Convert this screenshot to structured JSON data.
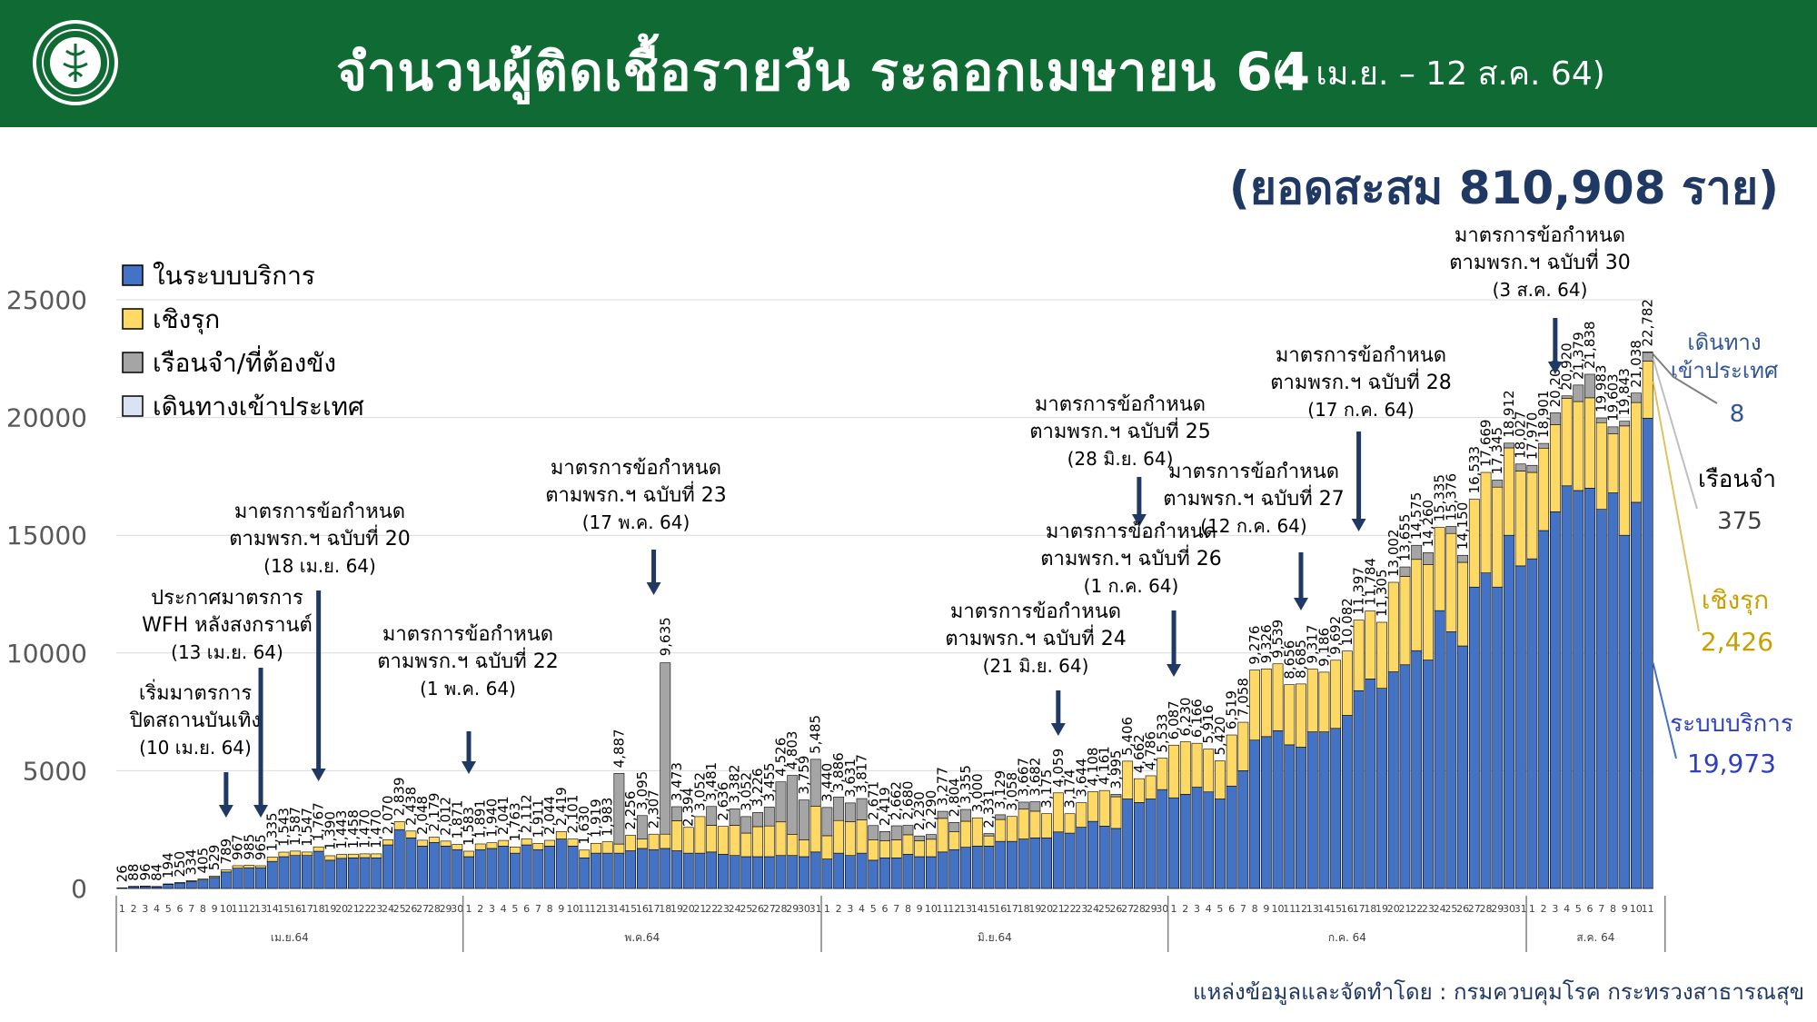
{
  "header": {
    "title": "จำนวนผู้ติดเชื้อรายวัน ระลอกเมษายน 64",
    "date_range": "(1 เม.ย. – 12 ส.ค. 64)",
    "cumulative": "(ยอดสะสม 810,908 ราย)"
  },
  "source": "แหล่งข้อมูลและจัดทำโดย : กรมควบคุมโรค กระทรวงสาธารณสุข",
  "colors": {
    "banner": "#0f6b33",
    "service": "#4472c4",
    "proactive": "#ffd966",
    "prison": "#a5a5a5",
    "travel": "#dae3f3",
    "arrow": "#1f3864"
  },
  "final_day_labels": {
    "travel_label": "เดินทาง\nเข้าประเทศ",
    "travel_value": "8",
    "prison_label": "เรือนจำ",
    "prison_value": "375",
    "proactive_label": "เชิงรุก",
    "proactive_value": "2,426",
    "service_label": "ระบบบริการ",
    "service_value": "19,973"
  },
  "annotations": [
    {
      "text": "เริ่มมาตรการ\nปิดสถานบันเทิง\n(10 เม.ย. 64)",
      "day": 10
    },
    {
      "text": "ประกาศมาตรการ\nWFH หลังสงกรานต์\n(13 เม.ย. 64)",
      "day": 13
    },
    {
      "text": "มาตรการข้อกำหนด\nตามพรก.ฯ ฉบับที่ 20\n(18 เม.ย. 64)",
      "day": 18
    },
    {
      "text": "มาตรการข้อกำหนด\nตามพรก.ฯ ฉบับที่ 22\n(1 พ.ค. 64)",
      "day": 31
    },
    {
      "text": "มาตรการข้อกำหนด\nตามพรก.ฯ ฉบับที่ 23\n(17 พ.ค. 64)",
      "day": 47
    },
    {
      "text": "มาตรการข้อกำหนด\nตามพรก.ฯ ฉบับที่ 24\n(21 มิ.ย. 64)",
      "day": 82
    },
    {
      "text": "มาตรการข้อกำหนด\nตามพรก.ฯ ฉบับที่ 25\n(28 มิ.ย. 64)",
      "day": 89
    },
    {
      "text": "มาตรการข้อกำหนด\nตามพรก.ฯ ฉบับที่ 26\n(1 ก.ค. 64)",
      "day": 92
    },
    {
      "text": "มาตรการข้อกำหนด\nตามพรก.ฯ ฉบับที่ 27\n(12 ก.ค. 64)",
      "day": 103
    },
    {
      "text": "มาตรการข้อกำหนด\nตามพรก.ฯ ฉบับที่ 28\n(17 ก.ค. 64)",
      "day": 108
    },
    {
      "text": "มาตรการข้อกำหนด\nตามพรก.ฯ ฉบับที่ 30\n(3 ส.ค. 64)",
      "day": 125
    }
  ],
  "chart_data": {
    "type": "bar",
    "stacked": true,
    "ylim": [
      0,
      25000
    ],
    "yticks": [
      0,
      5000,
      10000,
      15000,
      20000,
      25000
    ],
    "grid": true,
    "legend_position": "top-left",
    "months": [
      {
        "label": "เม.ย.64",
        "days": 30
      },
      {
        "label": "พ.ค.64",
        "days": 31
      },
      {
        "label": "มิ.ย.64",
        "days": 30
      },
      {
        "label": "ก.ค. 64",
        "days": 31
      },
      {
        "label": "ส.ค. 64",
        "days": 12
      }
    ],
    "legend": [
      "ในระบบบริการ",
      "เชิงรุก",
      "เรือนจำ/ที่ต้องขัง",
      "เดินทางเข้าประเทศ"
    ],
    "x_labels": [
      "1",
      "2",
      "3",
      "4",
      "5",
      "6",
      "7",
      "8",
      "9",
      "10",
      "11",
      "12",
      "13",
      "14",
      "15",
      "16",
      "17",
      "18",
      "19",
      "20",
      "21",
      "22",
      "23",
      "24",
      "25",
      "26",
      "27",
      "28",
      "29",
      "30",
      "1",
      "2",
      "3",
      "4",
      "5",
      "6",
      "7",
      "8",
      "9",
      "10",
      "11",
      "12",
      "13",
      "14",
      "15",
      "16",
      "17",
      "18",
      "19",
      "20",
      "21",
      "22",
      "23",
      "24",
      "25",
      "26",
      "27",
      "28",
      "29",
      "30",
      "31",
      "1",
      "2",
      "3",
      "4",
      "5",
      "6",
      "7",
      "8",
      "9",
      "10",
      "11",
      "12",
      "13",
      "14",
      "15",
      "16",
      "17",
      "18",
      "19",
      "20",
      "21",
      "22",
      "23",
      "24",
      "25",
      "26",
      "27",
      "28",
      "29",
      "30",
      "1",
      "2",
      "3",
      "4",
      "5",
      "6",
      "7",
      "8",
      "9",
      "10",
      "11",
      "12",
      "13",
      "14",
      "15",
      "16",
      "17",
      "18",
      "19",
      "20",
      "21",
      "22",
      "23",
      "24",
      "25",
      "26",
      "27",
      "28",
      "29",
      "30",
      "31",
      "1",
      "2",
      "3",
      "4",
      "5",
      "6",
      "7",
      "8",
      "9",
      "10",
      "11",
      "12"
    ],
    "totals": [
      26,
      88,
      96,
      84,
      194,
      250,
      334,
      405,
      529,
      789,
      967,
      985,
      965,
      1335,
      1543,
      1587,
      1547,
      1767,
      1390,
      1443,
      1458,
      1470,
      1470,
      2070,
      2839,
      2438,
      2048,
      2179,
      2012,
      1871,
      1583,
      1891,
      1940,
      2041,
      1763,
      2112,
      1911,
      2044,
      2419,
      2101,
      1630,
      1919,
      1983,
      4887,
      2256,
      3095,
      2307,
      9635,
      3473,
      2394,
      3052,
      3481,
      2636,
      3382,
      3052,
      3226,
      3455,
      4526,
      4803,
      3759,
      5485,
      3440,
      3886,
      3631,
      3817,
      2671,
      2419,
      2662,
      2680,
      2230,
      2290,
      3277,
      2804,
      3355,
      3000,
      2331,
      3129,
      3058,
      3667,
      3682,
      3175,
      4059,
      3174,
      3644,
      4108,
      4161,
      3995,
      5406,
      4662,
      4786,
      5533,
      6087,
      6230,
      6166,
      5916,
      5420,
      6519,
      7058,
      9276,
      9326,
      9539,
      8656,
      8685,
      9317,
      9186,
      9692,
      10082,
      11397,
      11784,
      11305,
      13002,
      13655,
      14575,
      14260,
      15335,
      15376,
      14150,
      16533,
      17669,
      17345,
      18912,
      18027,
      17970,
      18901,
      20200,
      20920,
      21379,
      21838,
      19983,
      19603,
      19843,
      21038,
      22782
    ],
    "service": [
      26,
      87,
      94,
      80,
      182,
      230,
      300,
      360,
      470,
      700,
      860,
      880,
      880,
      1150,
      1350,
      1400,
      1400,
      1580,
      1200,
      1280,
      1300,
      1310,
      1300,
      1850,
      2500,
      2150,
      1800,
      1950,
      1800,
      1650,
      1350,
      1650,
      1700,
      1800,
      1500,
      1850,
      1650,
      1800,
      2100,
      1800,
      1300,
      1500,
      1500,
      1500,
      1600,
      1700,
      1650,
      1700,
      1600,
      1500,
      1500,
      1550,
      1450,
      1400,
      1350,
      1350,
      1350,
      1400,
      1400,
      1350,
      1550,
      1250,
      1500,
      1400,
      1500,
      1200,
      1300,
      1300,
      1450,
      1350,
      1350,
      1550,
      1650,
      1750,
      1800,
      1800,
      2000,
      2000,
      2100,
      2150,
      2150,
      2400,
      2350,
      2600,
      2850,
      2650,
      2550,
      3800,
      3650,
      3800,
      4200,
      3850,
      4000,
      4300,
      4100,
      3800,
      4350,
      5000,
      6300,
      6450,
      6700,
      6100,
      6000,
      6650,
      6650,
      6800,
      7350,
      8400,
      8900,
      8500,
      9200,
      9500,
      10100,
      9700,
      11800,
      10900,
      10300,
      12800,
      13400,
      12800,
      15000,
      13700,
      14000,
      15200,
      16000,
      17100,
      16900,
      17000,
      16100,
      16800,
      15000,
      16400,
      19973
    ],
    "proactive": [
      0,
      1,
      2,
      4,
      12,
      20,
      34,
      45,
      59,
      89,
      107,
      105,
      85,
      185,
      193,
      187,
      147,
      187,
      190,
      163,
      158,
      160,
      170,
      220,
      339,
      288,
      248,
      229,
      212,
      221,
      233,
      241,
      240,
      241,
      263,
      262,
      261,
      244,
      319,
      301,
      330,
      419,
      483,
      387,
      656,
      395,
      657,
      607,
      1273,
      1094,
      1552,
      1131,
      1186,
      1282,
      1002,
      1276,
      1305,
      1426,
      903,
      709,
      1935,
      990,
      1386,
      1431,
      1417,
      871,
      719,
      762,
      830,
      680,
      740,
      1427,
      754,
      1105,
      1200,
      431,
      929,
      1058,
      1267,
      1132,
      1025,
      1659,
      824,
      1044,
      1258,
      1511,
      1345,
      1606,
      1012,
      986,
      1333,
      2237,
      2230,
      1866,
      1816,
      1620,
      2169,
      2058,
      2976,
      2876,
      2839,
      2556,
      2685,
      2667,
      2536,
      2892,
      2732,
      2997,
      2884,
      2805,
      3802,
      3755,
      3875,
      4060,
      3535,
      4176,
      3550,
      3733,
      4269,
      4245,
      3712,
      4027,
      3670,
      3501,
      3700,
      3720,
      3779,
      3838,
      3683,
      2503,
      4643,
      4238,
      2426
    ],
    "prison": [
      0,
      0,
      0,
      0,
      0,
      0,
      0,
      0,
      0,
      0,
      0,
      0,
      0,
      0,
      0,
      0,
      0,
      0,
      0,
      0,
      0,
      0,
      0,
      0,
      0,
      0,
      0,
      0,
      0,
      0,
      0,
      0,
      0,
      0,
      0,
      0,
      0,
      0,
      0,
      0,
      0,
      0,
      0,
      3000,
      0,
      1000,
      0,
      7278,
      600,
      0,
      0,
      800,
      0,
      700,
      700,
      600,
      800,
      1700,
      2500,
      1700,
      2000,
      1200,
      1000,
      800,
      900,
      600,
      400,
      600,
      400,
      200,
      200,
      300,
      400,
      500,
      0,
      100,
      200,
      0,
      300,
      400,
      0,
      0,
      0,
      0,
      0,
      0,
      100,
      0,
      0,
      0,
      0,
      0,
      0,
      0,
      0,
      0,
      0,
      0,
      0,
      0,
      0,
      0,
      0,
      0,
      0,
      0,
      0,
      0,
      0,
      0,
      0,
      400,
      600,
      500,
      0,
      300,
      300,
      0,
      0,
      300,
      200,
      300,
      300,
      200,
      500,
      100,
      700,
      1000,
      200,
      300,
      200,
      400,
      375
    ],
    "travel": [
      0,
      0,
      0,
      0,
      0,
      0,
      0,
      0,
      0,
      0,
      0,
      0,
      0,
      0,
      0,
      0,
      0,
      0,
      0,
      0,
      0,
      0,
      0,
      0,
      0,
      0,
      0,
      0,
      0,
      0,
      0,
      0,
      0,
      0,
      0,
      0,
      0,
      0,
      0,
      0,
      0,
      0,
      0,
      0,
      0,
      0,
      0,
      0,
      0,
      0,
      0,
      0,
      0,
      0,
      0,
      0,
      0,
      0,
      0,
      0,
      0,
      0,
      0,
      0,
      0,
      0,
      0,
      0,
      0,
      0,
      0,
      0,
      0,
      0,
      0,
      0,
      0,
      0,
      0,
      0,
      0,
      0,
      0,
      0,
      0,
      0,
      0,
      0,
      0,
      0,
      0,
      0,
      0,
      0,
      0,
      0,
      0,
      0,
      0,
      0,
      0,
      0,
      0,
      0,
      0,
      0,
      0,
      0,
      0,
      0,
      0,
      0,
      0,
      0,
      0,
      0,
      0,
      0,
      0,
      0,
      0,
      0,
      0,
      0,
      0,
      0,
      0,
      0,
      0,
      0,
      0,
      0,
      8
    ]
  }
}
